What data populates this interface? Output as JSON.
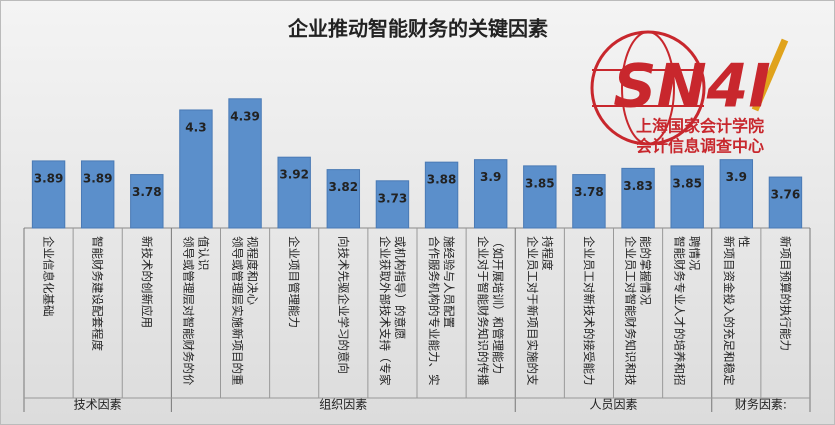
{
  "chart_data": {
    "type": "bar",
    "title": "企业推动智能财务的关键因素",
    "color": "#5b8fcb",
    "ylim": [
      3.35,
      5.0
    ],
    "groups": [
      {
        "name": "技术因素",
        "categories": [
          "企业信息化基础",
          "智能财务建设配套程度",
          "新技术的创新应用"
        ],
        "values": [
          3.89,
          3.89,
          3.78
        ]
      },
      {
        "name": "组织因素",
        "categories": [
          "领导或管理层对智能财务的价值认识",
          "领导或管理层实施新项目的重视程度和决心",
          "企业项目管理能力",
          "向技术先驱企业学习的意向",
          "企业获取外部技术支持（专家或机构指导）的意愿",
          "合作服务机构的专业能力、实施经验与人员配置",
          "企业对于智能财务知识的传播（如开展培训）和管理能力"
        ],
        "values": [
          4.3,
          4.39,
          3.92,
          3.82,
          3.73,
          3.88,
          3.9
        ]
      },
      {
        "name": "人员因素",
        "categories": [
          "企业员工对于新项目实施的支持程度",
          "企业员工对新技术的接受能力",
          "企业员工对智能财务知识和技能的掌握情况",
          "智能财务专业人才的培养和招聘情况"
        ],
        "values": [
          3.85,
          3.78,
          3.83,
          3.85
        ]
      },
      {
        "name": "财务因素:",
        "categories": [
          "新项目资金投入的充足和稳定性",
          "新项目预算的执行能力"
        ],
        "values": [
          3.9,
          3.76
        ]
      }
    ]
  },
  "logo": {
    "mark": "SN4I",
    "line1": "上海国家会计学院",
    "line2": "会计信息调查中心"
  }
}
